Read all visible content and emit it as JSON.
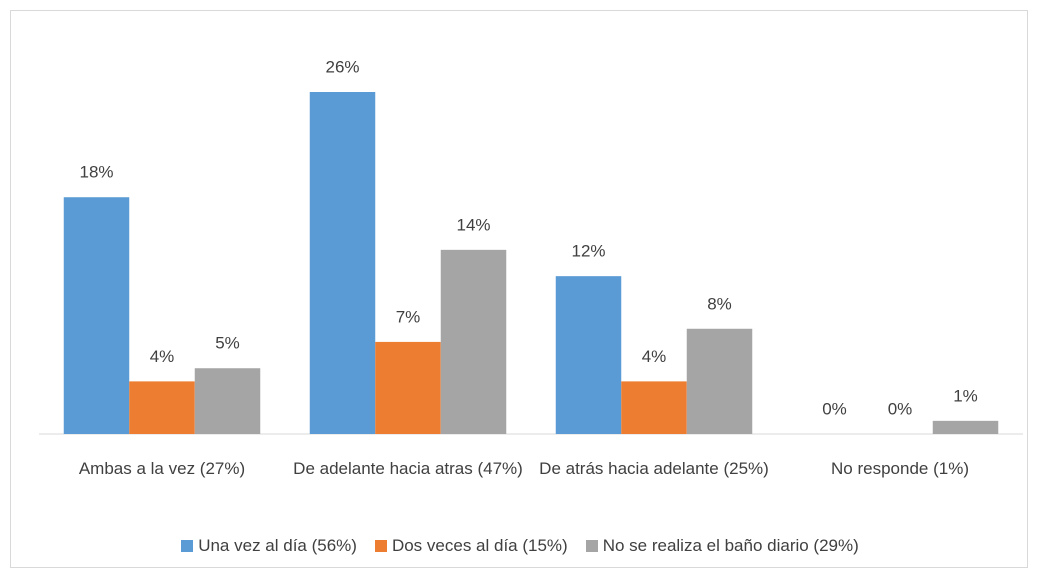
{
  "chart_data": {
    "type": "bar",
    "categories": [
      "Ambas a la vez (27%)",
      "De adelante hacia atras (47%)",
      "De atrás hacia adelante (25%)",
      "No responde (1%)"
    ],
    "series": [
      {
        "name": "Una vez al día (56%)",
        "color": "#5b9bd5",
        "values": [
          18,
          26,
          12,
          0
        ],
        "value_labels": [
          "18%",
          "26%",
          "12%",
          "0%"
        ]
      },
      {
        "name": "Dos veces al día  (15%)",
        "color": "#ed7d31",
        "values": [
          4,
          7,
          4,
          0
        ],
        "value_labels": [
          "4%",
          "7%",
          "4%",
          "0%"
        ]
      },
      {
        "name": "No se realiza el baño diario  (29%)",
        "color": "#a5a5a5",
        "values": [
          5,
          14,
          8,
          1
        ],
        "value_labels": [
          "5%",
          "14%",
          "8%",
          "1%"
        ]
      }
    ],
    "legend": "bottom"
  }
}
